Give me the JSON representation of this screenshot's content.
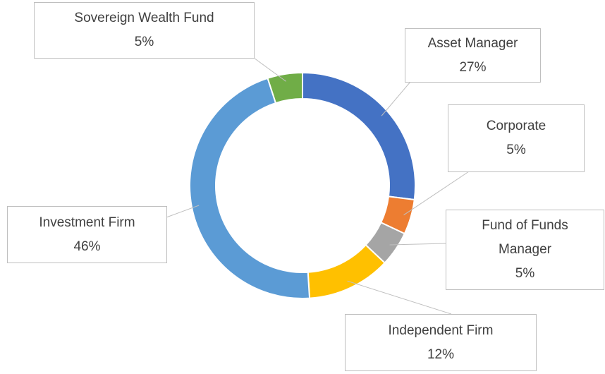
{
  "chart_data": {
    "type": "donut",
    "categories": [
      "Asset Manager",
      "Corporate",
      "Fund of Funds Manager",
      "Independent Firm",
      "Investment Firm",
      "Sovereign Wealth Fund"
    ],
    "values": [
      27,
      5,
      5,
      12,
      46,
      5
    ],
    "value_labels": [
      "27%",
      "5%",
      "5%",
      "12%",
      "46%",
      "5%"
    ],
    "colors": [
      "#4472c4",
      "#ed7d31",
      "#a5a5a5",
      "#ffc000",
      "#5b9bd5",
      "#70ad47"
    ]
  }
}
